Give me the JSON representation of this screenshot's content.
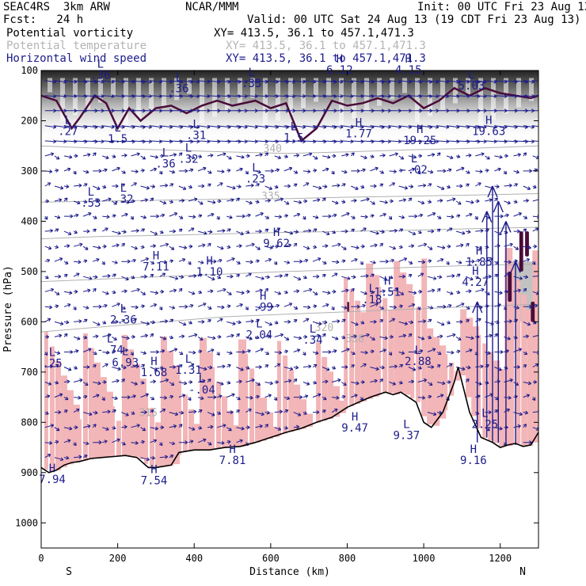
{
  "header": {
    "model": "SEAC4RS  3km ARW",
    "org": "NCAR/MMM",
    "init": "Init: 00 UTC Fri 23 Aug 13",
    "fcst": "Fcst:   24 h",
    "valid": "Valid: 00 UTC Sat 24 Aug 13 (19 CDT Fri 23 Aug 13)",
    "fields": [
      {
        "name": "Potential vorticity",
        "xy": "XY= 413.5, 36.1 to 457.1,471.3",
        "color": "#000000"
      },
      {
        "name": "Potential temperature",
        "xy": "XY= 413.5, 36.1 to 457.1,471.3",
        "color": "#b4b4b4"
      },
      {
        "name": "Horizontal wind speed",
        "xy": "XY= 413.5, 36.1 to 457.1,471.3",
        "color": "#1c1c8c"
      }
    ]
  },
  "chart_data": {
    "type": "cross-section",
    "title": "Potential vorticity / Potential temperature / Horizontal wind speed",
    "xlabel": "Distance (km)",
    "ylabel": "Pressure (hPa)",
    "xlim": [
      0,
      1300
    ],
    "ylim": [
      1050,
      100
    ],
    "x_ticks": [
      0,
      200,
      400,
      600,
      800,
      1000,
      1200
    ],
    "y_ticks": [
      100,
      200,
      300,
      400,
      500,
      600,
      700,
      800,
      900,
      1000
    ],
    "end_labels": {
      "left": "S",
      "right": "N"
    },
    "theta_contours": [
      {
        "label": "340",
        "p": [
          250,
          255,
          258,
          262,
          265,
          262,
          258,
          255,
          250
        ]
      },
      {
        "label": "335",
        "p": [
          362,
          360,
          358,
          356,
          355,
          352,
          350,
          348,
          345
        ]
      },
      {
        "label": "",
        "p": [
          435,
          430,
          428,
          425,
          422,
          420,
          418,
          415,
          412
        ]
      },
      {
        "label": "",
        "p": [
          520,
          515,
          510,
          505,
          500,
          496,
          492,
          488,
          485
        ]
      },
      {
        "label": "320",
        "p": [
          620,
          610,
          600,
          590,
          585,
          580,
          575,
          570,
          565
        ]
      }
    ],
    "theta_x": [
      0,
      160,
      320,
      480,
      640,
      800,
      960,
      1120,
      1300
    ],
    "theta_labels": [
      {
        "text": "340",
        "x": 605,
        "p": 262
      },
      {
        "text": "335",
        "x": 600,
        "p": 357
      },
      {
        "text": "320",
        "x": 740,
        "p": 618
      },
      {
        "text": "330",
        "x": 820,
        "p": 640
      },
      {
        "text": "315",
        "x": 280,
        "p": 788
      }
    ],
    "terrain": {
      "x": [
        0,
        20,
        40,
        60,
        80,
        100,
        130,
        160,
        190,
        220,
        250,
        280,
        300,
        340,
        360,
        400,
        440,
        480,
        520,
        560,
        600,
        640,
        680,
        720,
        760,
        800,
        830,
        860,
        880,
        900,
        920,
        940,
        960,
        980,
        1000,
        1020,
        1050,
        1070,
        1080,
        1090,
        1100,
        1120,
        1150,
        1180,
        1200,
        1220,
        1240,
        1260,
        1280,
        1300
      ],
      "p": [
        890,
        900,
        895,
        885,
        880,
        878,
        872,
        870,
        868,
        866,
        870,
        890,
        890,
        885,
        860,
        855,
        855,
        850,
        848,
        840,
        830,
        820,
        812,
        800,
        790,
        770,
        760,
        750,
        745,
        740,
        745,
        740,
        750,
        760,
        800,
        810,
        780,
        740,
        720,
        690,
        720,
        780,
        830,
        840,
        850,
        845,
        842,
        848,
        845,
        820
      ]
    },
    "pv_labels": [
      {
        "tag": "L",
        "value": ".36",
        "x": 155,
        "p": 113
      },
      {
        "tag": "L",
        "value": ".27",
        "x": 70,
        "p": 225
      },
      {
        "tag": "L",
        "value": "1.5",
        "x": 200,
        "p": 240
      },
      {
        "tag": "L",
        "value": ".31",
        "x": 405,
        "p": 233
      },
      {
        "tag": "L",
        "value": ".36",
        "x": 325,
        "p": 290
      },
      {
        "tag": "L",
        "value": ".32",
        "x": 385,
        "p": 280
      },
      {
        "tag": "L",
        "value": ".53",
        "x": 130,
        "p": 368
      },
      {
        "tag": "L",
        "value": ".32",
        "x": 215,
        "p": 360
      },
      {
        "tag": "L",
        "value": ".23",
        "x": 560,
        "p": 320
      },
      {
        "tag": "L",
        "value": "1.5",
        "x": 660,
        "p": 238
      },
      {
        "tag": "L",
        "value": "-.02",
        "x": 975,
        "p": 302
      },
      {
        "tag": "H",
        "value": "1.77",
        "x": 830,
        "p": 230
      },
      {
        "tag": "H",
        "value": "19.25",
        "x": 990,
        "p": 243
      },
      {
        "tag": "H",
        "value": "19.63",
        "x": 1170,
        "p": 225
      },
      {
        "tag": "H",
        "value": "7.11",
        "x": 300,
        "p": 495
      },
      {
        "tag": "H",
        "value": "1.10",
        "x": 440,
        "p": 505
      },
      {
        "tag": "H",
        "value": "9.62",
        "x": 615,
        "p": 448
      },
      {
        "tag": "H",
        "value": "1.85",
        "x": 1145,
        "p": 485
      },
      {
        "tag": "L",
        "value": "2.36",
        "x": 215,
        "p": 600
      },
      {
        "tag": "H",
        "value": ".99",
        "x": 580,
        "p": 575
      },
      {
        "tag": "L",
        "value": "2.04",
        "x": 570,
        "p": 630
      },
      {
        "tag": "L",
        "value": ".34",
        "x": 710,
        "p": 640
      },
      {
        "tag": "L",
        "value": "-.74",
        "x": 180,
        "p": 660
      },
      {
        "tag": "L",
        "value": "6.93",
        "x": 220,
        "p": 685
      },
      {
        "tag": "H",
        "value": "1.68",
        "x": 295,
        "p": 705
      },
      {
        "tag": "L",
        "value": "1.31",
        "x": 385,
        "p": 700
      },
      {
        "tag": "L",
        "value": "-.04",
        "x": 420,
        "p": 740
      },
      {
        "tag": "L",
        "value": ".18",
        "x": 865,
        "p": 560
      },
      {
        "tag": "H",
        "value": "1.51",
        "x": 905,
        "p": 545
      },
      {
        "tag": "L",
        "value": "2.88",
        "x": 985,
        "p": 683
      },
      {
        "tag": "H",
        "value": "9.47",
        "x": 820,
        "p": 815
      },
      {
        "tag": "L",
        "value": "9.37",
        "x": 955,
        "p": 830
      },
      {
        "tag": "L",
        "value": "2.25",
        "x": 1160,
        "p": 808
      },
      {
        "tag": "H",
        "value": "9.16",
        "x": 1130,
        "p": 880
      },
      {
        "tag": "H",
        "value": "7.81",
        "x": 500,
        "p": 880
      },
      {
        "tag": "H",
        "value": "7.94",
        "x": 20,
        "p": 918
      },
      {
        "tag": "H",
        "value": "7.54",
        "x": 295,
        "p": 920
      },
      {
        "tag": "L",
        "value": ".25",
        "x": 0,
        "p": 687
      },
      {
        "tag": "H",
        "value": "4.27",
        "x": 1135,
        "p": 525
      },
      {
        "tag": "L",
        "value": "5.03",
        "x": 1125,
        "p": 135
      },
      {
        "tag": "H",
        "value": "6.12",
        "x": 780,
        "p": 103
      },
      {
        "tag": "L",
        "value": ".33",
        "x": 550,
        "p": 130
      },
      {
        "tag": "L",
        "value": ".36",
        "x": 360,
        "p": 140
      },
      {
        "tag": "H",
        "value": "4.15",
        "x": 960,
        "p": 103
      }
    ]
  }
}
